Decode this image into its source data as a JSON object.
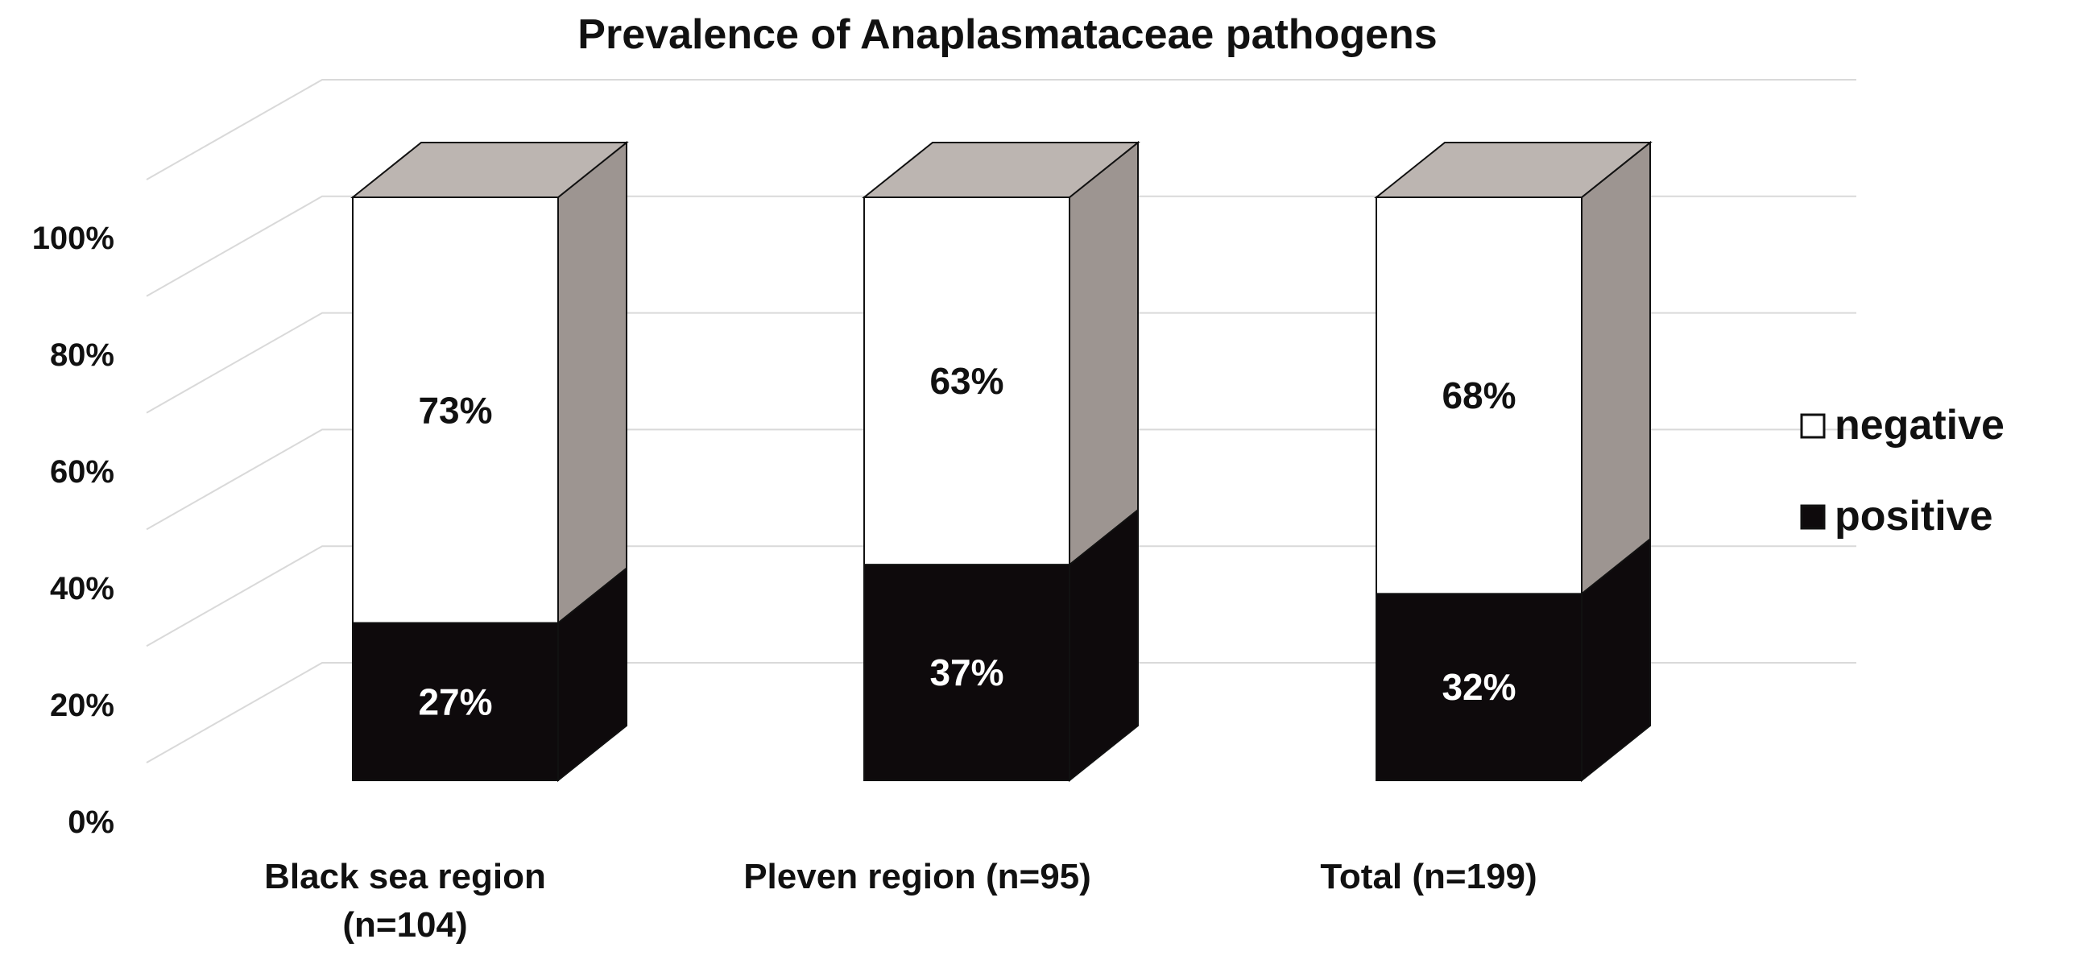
{
  "chart_data": {
    "type": "bar",
    "stacked": true,
    "style": "3d-column",
    "title": "Prevalence of Anaplasmataceae pathogens",
    "categories": [
      [
        "Black sea region",
        "(n=104)"
      ],
      [
        "Pleven region (n=95)"
      ],
      [
        "Total (n=199)"
      ]
    ],
    "series": [
      {
        "name": "positive",
        "values": [
          27,
          37,
          32
        ],
        "labels": [
          "27%",
          "37%",
          "32%"
        ],
        "color": "#0e0a0c",
        "label_color": "#ffffff"
      },
      {
        "name": "negative",
        "values": [
          73,
          63,
          68
        ],
        "labels": [
          "73%",
          "63%",
          "68%"
        ],
        "color": "#ffffff",
        "label_color": "#111111"
      }
    ],
    "yticks": [
      "0%",
      "20%",
      "40%",
      "60%",
      "80%",
      "100%"
    ],
    "ylim": [
      0,
      100
    ],
    "grid": true,
    "legend_position": "right",
    "colors": {
      "top_face": "#bcb5b1",
      "side_face": "#9d9591",
      "gridline": "#d9d9d9",
      "outline": "#111111"
    }
  }
}
